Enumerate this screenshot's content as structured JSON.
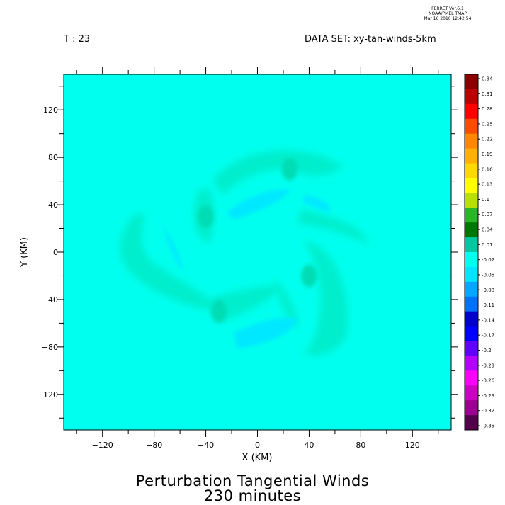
{
  "header": {
    "time_label": "T : 23",
    "dataset_label": "DATA SET: xy-tan-winds-5km",
    "stamp": [
      "FERRET  Ver.6.1",
      "NOAA/PMEL TMAP",
      "Mar 16 2010 12:42:54"
    ]
  },
  "chart_data": {
    "type": "heatmap",
    "title": "Perturbation Tangential Winds",
    "subtitle": "230 minutes",
    "xlabel": "X (KM)",
    "ylabel": "Y (KM)",
    "xlim": [
      -150,
      150
    ],
    "ylim": [
      -150,
      150
    ],
    "x_ticks": [
      -120,
      -80,
      -40,
      0,
      40,
      80,
      120
    ],
    "y_ticks": [
      120,
      80,
      40,
      0,
      -40,
      -80,
      -120
    ],
    "background_value": 0.0,
    "features": [
      {
        "x": 25,
        "y": 70,
        "value": 0.04
      },
      {
        "x": -40,
        "y": 30,
        "value": 0.03
      },
      {
        "x": -30,
        "y": -50,
        "value": 0.04
      },
      {
        "x": 40,
        "y": -20,
        "value": 0.03
      },
      {
        "x": 30,
        "y": 50,
        "value": -0.02
      },
      {
        "x": 0,
        "y": -70,
        "value": -0.02
      }
    ],
    "colorbar": {
      "labels": [
        "0.34",
        "0.31",
        "0.28",
        "0.25",
        "0.22",
        "0.19",
        "0.16",
        "0.13",
        "0.1",
        "0.07",
        "0.04",
        "0.01",
        "-0.02",
        "-0.05",
        "-0.08",
        "-0.11",
        "-0.14",
        "-0.17",
        "-0.2",
        "-0.23",
        "-0.26",
        "-0.29",
        "-0.32",
        "-0.35"
      ],
      "colors": [
        "#8a0000",
        "#bf0000",
        "#ff0000",
        "#ff4a00",
        "#ff8800",
        "#ffb000",
        "#ffd800",
        "#ffff00",
        "#b8e000",
        "#2bb52b",
        "#007700",
        "#00c8a0",
        "#00ffee",
        "#00e6ff",
        "#00a8ff",
        "#0070ff",
        "#0000d0",
        "#0000ff",
        "#6000ff",
        "#b400ff",
        "#ff00ff",
        "#d000c0",
        "#9c0090",
        "#55004a"
      ]
    },
    "colors": {
      "field": "#00ffee",
      "positive_band": "#00eecc",
      "positive_core": "#00dcb4",
      "negative_band": "#00e8ff"
    }
  }
}
